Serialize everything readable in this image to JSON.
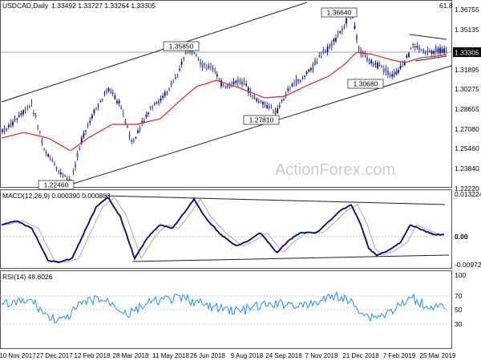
{
  "chart_data": [
    {
      "type": "candlestick",
      "title": "USDCAD,Daily",
      "ohlc_label": "1.33492 1.33727 1.33264 1.33305",
      "ylim": [
        1.2246,
        1.3664
      ],
      "y_ticks": [
        "1.36755",
        "1.35135",
        "1.33305",
        "1.31895",
        "1.30275",
        "1.28655",
        "1.27080",
        "1.25460",
        "1.23840",
        "1.22220"
      ],
      "current_price": "1.33305",
      "fib_label": "61.8",
      "annotations": [
        {
          "label": "1.22460",
          "value": 1.2246,
          "date": "Jan 2018"
        },
        {
          "label": "1.35850",
          "value": 1.3585,
          "date": "Jun 2018"
        },
        {
          "label": "1.27810",
          "value": 1.2781,
          "date": "Sep 2018"
        },
        {
          "label": "1.36640",
          "value": 1.3664,
          "date": "Dec 2018"
        },
        {
          "label": "1.30680",
          "value": 1.3068,
          "date": "Jan 2019"
        }
      ],
      "overlay": "moving average (red)",
      "watermark": "ActionForex.com"
    },
    {
      "type": "line",
      "title": "MACD(12,26,9) 0.000390 0.000803",
      "y_ticks": [
        "0.013224",
        "0.00",
        "-0.009721"
      ],
      "series": [
        {
          "name": "MACD",
          "color": "#00008b"
        },
        {
          "name": "Signal",
          "color": "#a8a8a8"
        }
      ]
    },
    {
      "type": "line",
      "title": "RSI(14) 48.6026",
      "y_ticks": [
        "100",
        "70",
        "50",
        "30"
      ],
      "series": [
        {
          "name": "RSI",
          "color": "#1e90ff"
        }
      ]
    }
  ],
  "x_labels": [
    "10 Nov 2017",
    "27 Dec 2017",
    "12 Feb 2018",
    "28 Mar 2018",
    "11 May 2018",
    "26 Jun 2018",
    "9 Aug 2018",
    "24 Sep 2018",
    "7 Nov 2018",
    "21 Dec 2018",
    "7 Feb 2019",
    "25 Mar 2019"
  ]
}
